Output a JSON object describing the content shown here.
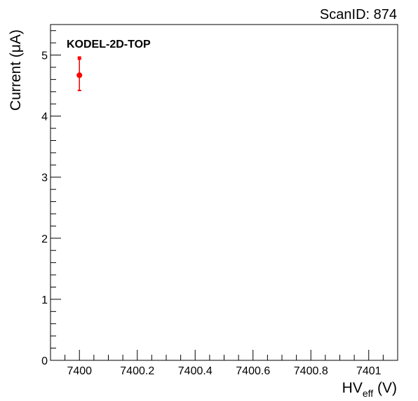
{
  "header": {
    "scan_label": "ScanID: 874"
  },
  "chart_data": {
    "type": "scatter",
    "title": "",
    "annotation": "KODEL-2D-TOP",
    "xlabel": {
      "main": "HV",
      "sub": "eff",
      "unit": " (V)"
    },
    "ylabel": "Current (μA)",
    "xlim": [
      7399.9,
      7401.1
    ],
    "ylim": [
      0,
      5.5
    ],
    "x_ticks": [
      {
        "value": 7400,
        "label": "7400"
      },
      {
        "value": 7400.2,
        "label": "7400.2"
      },
      {
        "value": 7400.4,
        "label": "7400.4"
      },
      {
        "value": 7400.6,
        "label": "7400.6"
      },
      {
        "value": 7400.8,
        "label": "7400.8"
      },
      {
        "value": 7401,
        "label": "7401"
      }
    ],
    "y_ticks": [
      {
        "value": 0,
        "label": "0"
      },
      {
        "value": 1,
        "label": "1"
      },
      {
        "value": 2,
        "label": "2"
      },
      {
        "value": 3,
        "label": "3"
      },
      {
        "value": 4,
        "label": "4"
      },
      {
        "value": 5,
        "label": "5"
      }
    ],
    "series": [
      {
        "color": "#ff0000",
        "points": [
          {
            "x": 7400,
            "y": 4.67,
            "err_low": 4.42,
            "err_high": 4.95
          }
        ]
      }
    ],
    "grid": false,
    "legend": "none"
  }
}
